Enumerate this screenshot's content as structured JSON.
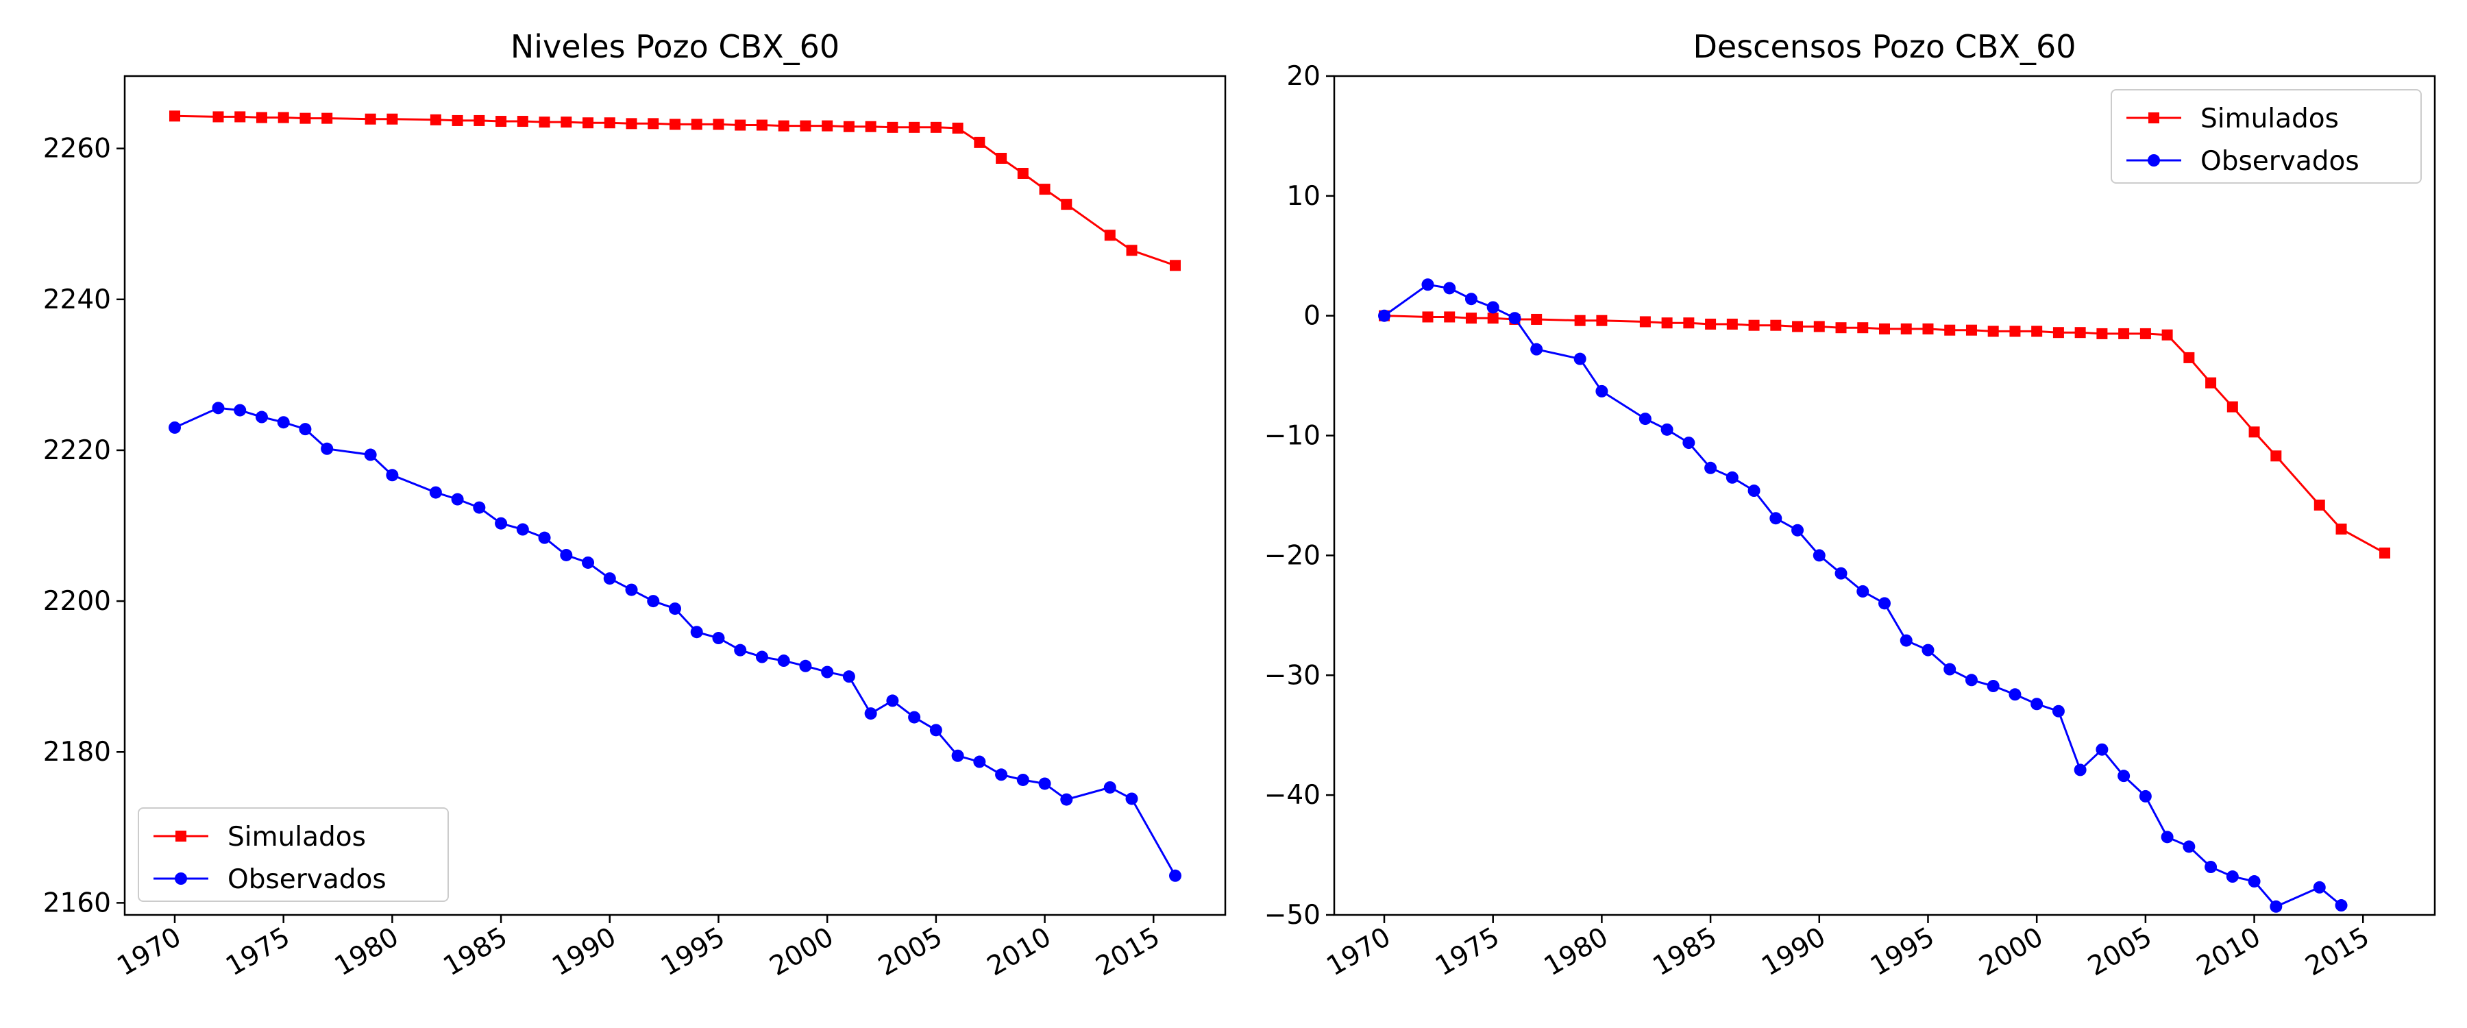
{
  "chart_data": [
    {
      "type": "line",
      "title": "Niveles Pozo CBX_60",
      "xlabel": "",
      "ylabel": "",
      "xlim": [
        1967.7,
        2018.3
      ],
      "ylim": [
        2158.4,
        2269.6
      ],
      "xticks": [
        1970,
        1975,
        1980,
        1985,
        1990,
        1995,
        2000,
        2005,
        2010,
        2015
      ],
      "xtick_labels": [
        "1970",
        "1975",
        "1980",
        "1985",
        "1990",
        "1995",
        "2000",
        "2005",
        "2010",
        "2015"
      ],
      "yticks": [
        2160,
        2180,
        2200,
        2220,
        2240,
        2260
      ],
      "ytick_labels": [
        "2160",
        "2180",
        "2200",
        "2220",
        "2240",
        "2260"
      ],
      "grid": false,
      "legend_position": "lower-left",
      "series": [
        {
          "name": "Simulados",
          "color": "#ff0000",
          "marker": "square",
          "x": [
            1970,
            1972,
            1973,
            1974,
            1975,
            1976,
            1977,
            1979,
            1980,
            1982,
            1983,
            1984,
            1985,
            1986,
            1987,
            1988,
            1989,
            1990,
            1991,
            1992,
            1993,
            1994,
            1995,
            1996,
            1997,
            1998,
            1999,
            2000,
            2001,
            2002,
            2003,
            2004,
            2005,
            2006,
            2007,
            2008,
            2009,
            2010,
            2011,
            2013,
            2014,
            2016
          ],
          "y": [
            2264.3,
            2264.2,
            2264.2,
            2264.1,
            2264.1,
            2264.0,
            2264.0,
            2263.9,
            2263.9,
            2263.8,
            2263.7,
            2263.7,
            2263.6,
            2263.6,
            2263.5,
            2263.5,
            2263.4,
            2263.4,
            2263.3,
            2263.3,
            2263.2,
            2263.2,
            2263.2,
            2263.1,
            2263.1,
            2263.0,
            2263.0,
            2263.0,
            2262.9,
            2262.9,
            2262.8,
            2262.8,
            2262.8,
            2262.7,
            2260.8,
            2258.7,
            2256.7,
            2254.6,
            2252.6,
            2248.5,
            2246.5,
            2244.5
          ]
        },
        {
          "name": "Observados",
          "color": "#0000ff",
          "marker": "circle",
          "x": [
            1970,
            1972,
            1973,
            1974,
            1975,
            1976,
            1977,
            1979,
            1980,
            1982,
            1983,
            1984,
            1985,
            1986,
            1987,
            1988,
            1989,
            1990,
            1991,
            1992,
            1993,
            1994,
            1995,
            1996,
            1997,
            1998,
            1999,
            2000,
            2001,
            2002,
            2003,
            2004,
            2005,
            2006,
            2007,
            2008,
            2009,
            2010,
            2011,
            2013,
            2014,
            2016
          ],
          "y": [
            2223.0,
            2225.6,
            2225.3,
            2224.4,
            2223.7,
            2222.8,
            2220.2,
            2219.4,
            2216.7,
            2214.4,
            2213.5,
            2212.4,
            2210.3,
            2209.5,
            2208.4,
            2206.1,
            2205.1,
            2203.0,
            2201.5,
            2200.0,
            2199.0,
            2195.9,
            2195.1,
            2193.5,
            2192.6,
            2192.1,
            2191.4,
            2190.6,
            2190.0,
            2185.1,
            2186.8,
            2184.6,
            2182.9,
            2179.5,
            2178.7,
            2177.0,
            2176.3,
            2175.8,
            2173.7,
            2175.3,
            2173.8,
            2163.6
          ]
        }
      ]
    },
    {
      "type": "line",
      "title": "Descensos Pozo CBX_60",
      "xlabel": "",
      "ylabel": "",
      "xlim": [
        1967.7,
        2018.3
      ],
      "ylim": [
        -50,
        20
      ],
      "xticks": [
        1970,
        1975,
        1980,
        1985,
        1990,
        1995,
        2000,
        2005,
        2010,
        2015
      ],
      "xtick_labels": [
        "1970",
        "1975",
        "1980",
        "1985",
        "1990",
        "1995",
        "2000",
        "2005",
        "2010",
        "2015"
      ],
      "yticks": [
        -50,
        -40,
        -30,
        -20,
        -10,
        0,
        10,
        20
      ],
      "ytick_labels": [
        "−50",
        "−40",
        "−30",
        "−20",
        "−10",
        "0",
        "10",
        "20"
      ],
      "grid": false,
      "legend_position": "upper-right",
      "series": [
        {
          "name": "Simulados",
          "color": "#ff0000",
          "marker": "square",
          "x": [
            1970,
            1972,
            1973,
            1974,
            1975,
            1976,
            1977,
            1979,
            1980,
            1982,
            1983,
            1984,
            1985,
            1986,
            1987,
            1988,
            1989,
            1990,
            1991,
            1992,
            1993,
            1994,
            1995,
            1996,
            1997,
            1998,
            1999,
            2000,
            2001,
            2002,
            2003,
            2004,
            2005,
            2006,
            2007,
            2008,
            2009,
            2010,
            2011,
            2013,
            2014,
            2016
          ],
          "y": [
            0,
            -0.1,
            -0.1,
            -0.2,
            -0.2,
            -0.3,
            -0.3,
            -0.4,
            -0.4,
            -0.5,
            -0.6,
            -0.6,
            -0.7,
            -0.7,
            -0.8,
            -0.8,
            -0.9,
            -0.9,
            -1.0,
            -1.0,
            -1.1,
            -1.1,
            -1.1,
            -1.2,
            -1.2,
            -1.3,
            -1.3,
            -1.3,
            -1.4,
            -1.4,
            -1.5,
            -1.5,
            -1.5,
            -1.6,
            -3.5,
            -5.6,
            -7.6,
            -9.7,
            -11.7,
            -15.8,
            -17.8,
            -19.8
          ]
        },
        {
          "name": "Observados",
          "color": "#0000ff",
          "marker": "circle",
          "x": [
            1970,
            1972,
            1973,
            1974,
            1975,
            1976,
            1977,
            1979,
            1980,
            1982,
            1983,
            1984,
            1985,
            1986,
            1987,
            1988,
            1989,
            1990,
            1991,
            1992,
            1993,
            1994,
            1995,
            1996,
            1997,
            1998,
            1999,
            2000,
            2001,
            2002,
            2003,
            2004,
            2005,
            2006,
            2007,
            2008,
            2009,
            2010,
            2011,
            2013,
            2014
          ],
          "y": [
            0,
            2.6,
            2.3,
            1.4,
            0.7,
            -0.2,
            -2.8,
            -3.6,
            -6.3,
            -8.6,
            -9.5,
            -10.6,
            -12.7,
            -13.5,
            -14.6,
            -16.9,
            -17.9,
            -20.0,
            -21.5,
            -23.0,
            -24.0,
            -27.1,
            -27.9,
            -29.5,
            -30.4,
            -30.9,
            -31.6,
            -32.4,
            -33.0,
            -37.9,
            -36.2,
            -38.4,
            -40.1,
            -43.5,
            -44.3,
            -46.0,
            -46.8,
            -47.2,
            -49.3,
            -47.7,
            -49.2
          ]
        }
      ]
    }
  ]
}
